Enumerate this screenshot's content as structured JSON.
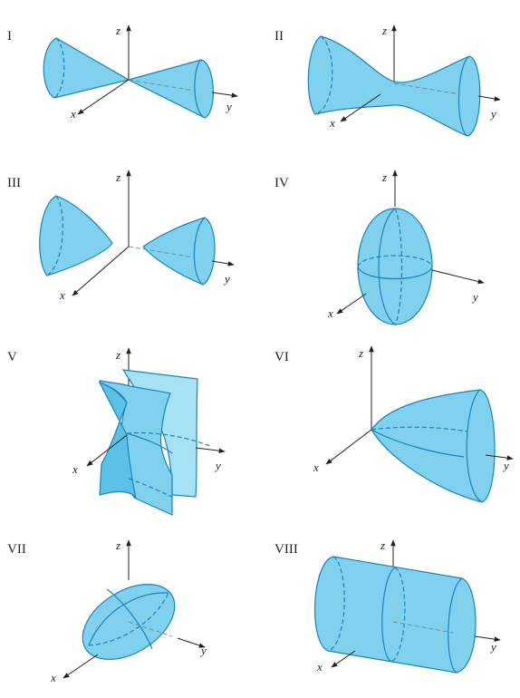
{
  "panels": [
    {
      "label": "I",
      "axes": {
        "z": "z",
        "x": "x",
        "y": "y"
      }
    },
    {
      "label": "II",
      "axes": {
        "z": "z",
        "x": "x",
        "y": "y"
      }
    },
    {
      "label": "III",
      "axes": {
        "z": "z",
        "x": "x",
        "y": "y"
      }
    },
    {
      "label": "IV",
      "axes": {
        "z": "z",
        "x": "x",
        "y": "y"
      }
    },
    {
      "label": "V",
      "axes": {
        "z": "z",
        "x": "x",
        "y": "y"
      }
    },
    {
      "label": "VI",
      "axes": {
        "z": "z",
        "x": "x",
        "y": "y"
      }
    },
    {
      "label": "VII",
      "axes": {
        "z": "z",
        "x": "x",
        "y": "y"
      }
    },
    {
      "label": "VIII",
      "axes": {
        "z": "z",
        "x": "x",
        "y": "y"
      }
    }
  ],
  "colors": {
    "surface": "#7fd1ee",
    "edge": "#1b84b8",
    "axis": "#231f20"
  }
}
